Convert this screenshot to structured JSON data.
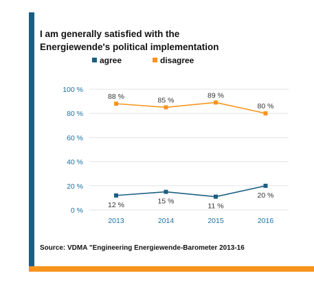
{
  "title": {
    "line1": "I am generally satisfied with the",
    "line2": "Energiewende's political implementation"
  },
  "source": "Source: VDMA \"Engineering Energiewende-Barometer 2013-16",
  "colors": {
    "accent_blue": "#1b5e82",
    "accent_orange": "#f7941d",
    "agree": "#1b5e82",
    "disagree": "#f7941d",
    "grid": "#e3e3e3",
    "axis_text": "#1b6fa0"
  },
  "chart_data": {
    "type": "line",
    "categories": [
      "2013",
      "2014",
      "2015",
      "2016"
    ],
    "series": [
      {
        "name": "agree",
        "values": [
          12,
          15,
          11,
          20
        ],
        "labels": [
          "12 %",
          "15 %",
          "11 %",
          "20 %"
        ],
        "color": "#1b5e82",
        "marker": "square",
        "label_position": "below"
      },
      {
        "name": "disagree",
        "values": [
          88,
          85,
          89,
          80
        ],
        "labels": [
          "88 %",
          "85 %",
          "89 %",
          "80 %"
        ],
        "color": "#f7941d",
        "marker": "square",
        "label_position": "above"
      }
    ],
    "yticks": [
      0,
      20,
      40,
      60,
      80,
      100
    ],
    "ytick_labels": [
      "0 %",
      "20 %",
      "40 %",
      "60 %",
      "80 %",
      "100 %"
    ],
    "ylim": [
      0,
      100
    ],
    "grid": true,
    "legend": "top-left",
    "title": "I am generally satisfied with the Energiewende's political implementation",
    "xlabel": "",
    "ylabel": ""
  }
}
